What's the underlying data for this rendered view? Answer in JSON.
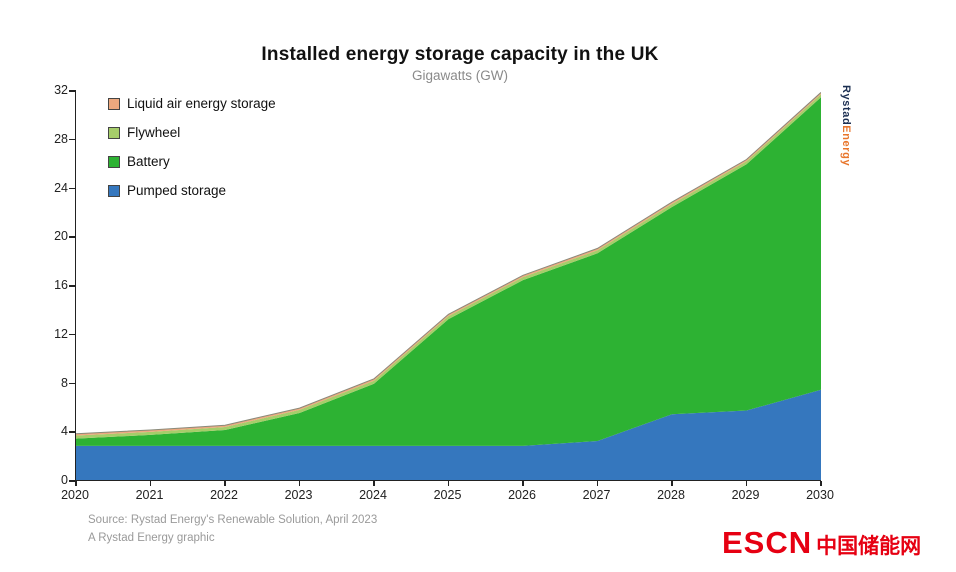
{
  "chart": {
    "title": "Installed energy storage capacity in the UK",
    "subtitle": "Gigawatts (GW)"
  },
  "chart_data": {
    "type": "area",
    "stacked": true,
    "title": "Installed energy storage capacity in the UK",
    "subtitle": "Gigawatts (GW)",
    "xlabel": "",
    "ylabel": "Gigawatts (GW)",
    "x": [
      2020,
      2021,
      2022,
      2023,
      2024,
      2025,
      2026,
      2027,
      2028,
      2029,
      2030
    ],
    "ylim": [
      0,
      32
    ],
    "yticks": [
      0,
      4,
      8,
      12,
      16,
      20,
      24,
      28,
      32
    ],
    "grid": false,
    "legend_position": "top-left-inside",
    "series": [
      {
        "id": "pumped-storage",
        "name": "Pumped storage",
        "color": "#3577be",
        "values": [
          2.8,
          2.8,
          2.8,
          2.8,
          2.8,
          2.8,
          2.8,
          3.2,
          5.4,
          5.7,
          7.4
        ]
      },
      {
        "id": "battery",
        "name": "Battery",
        "color": "#2db233",
        "values": [
          0.6,
          0.9,
          1.3,
          2.7,
          5.1,
          10.4,
          13.6,
          15.4,
          17.0,
          20.2,
          24.0
        ]
      },
      {
        "id": "flywheel",
        "name": "Flywheel",
        "color": "#a6cd6a",
        "values": [
          0.25,
          0.25,
          0.25,
          0.25,
          0.25,
          0.25,
          0.25,
          0.25,
          0.25,
          0.25,
          0.25
        ]
      },
      {
        "id": "liquid-air",
        "name": "Liquid air energy storage",
        "color": "#eda87e",
        "values": [
          0.15,
          0.15,
          0.15,
          0.15,
          0.15,
          0.15,
          0.15,
          0.15,
          0.15,
          0.15,
          0.15
        ]
      }
    ],
    "legend_order": [
      "liquid-air",
      "flywheel",
      "battery",
      "pumped-storage"
    ],
    "top_edge_color": "#8a8a7a"
  },
  "branding": {
    "vertical_logo_part1": "Rystad",
    "vertical_logo_part2": "Energy"
  },
  "footer": {
    "source_line1": "Source: Rystad Energy's Renewable Solution, April 2023",
    "source_line2": "A Rystad Energy graphic",
    "escn_text": "ESCN",
    "escn_cn": "中国储能网"
  }
}
